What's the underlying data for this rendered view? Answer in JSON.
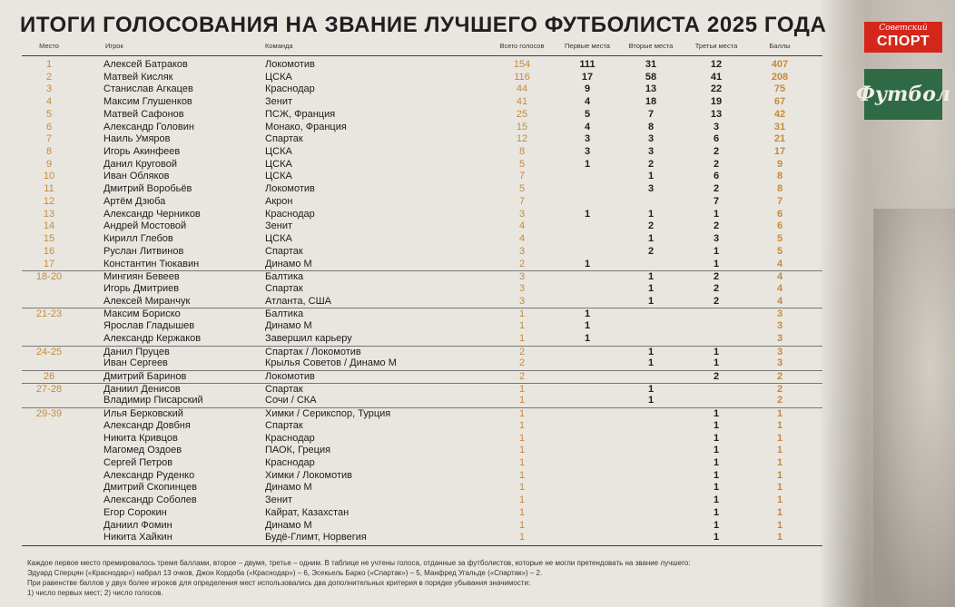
{
  "title": "ИТОГИ ГОЛОСОВАНИЯ НА ЗВАНИЕ ЛУЧШЕГО ФУТБОЛИСТА 2025 ГОДА",
  "logos": {
    "ss_small": "Советский",
    "ss_big": "СПОРТ",
    "fb": "Футбол"
  },
  "headers": {
    "place": "Место",
    "player": "Игрок",
    "team": "Команда",
    "total": "Всего голосов",
    "first": "Первые места",
    "second": "Вторые места",
    "third": "Третьи места",
    "points": "Баллы"
  },
  "rows": [
    {
      "place": "1",
      "name": "Алексей Батраков",
      "team": "Локомотив",
      "tot": "154",
      "f1": "111",
      "f2": "31",
      "f3": "12",
      "pts": "407"
    },
    {
      "place": "2",
      "name": "Матвей Кисляк",
      "team": "ЦСКА",
      "tot": "116",
      "f1": "17",
      "f2": "58",
      "f3": "41",
      "pts": "208"
    },
    {
      "place": "3",
      "name": "Станислав Агкацев",
      "team": "Краснодар",
      "tot": "44",
      "f1": "9",
      "f2": "13",
      "f3": "22",
      "pts": "75"
    },
    {
      "place": "4",
      "name": "Максим Глушенков",
      "team": "Зенит",
      "tot": "41",
      "f1": "4",
      "f2": "18",
      "f3": "19",
      "pts": "67"
    },
    {
      "place": "5",
      "name": "Матвей Сафонов",
      "team": "ПСЖ, Франция",
      "tot": "25",
      "f1": "5",
      "f2": "7",
      "f3": "13",
      "pts": "42"
    },
    {
      "place": "6",
      "name": "Александр Головин",
      "team": "Монако, Франция",
      "tot": "15",
      "f1": "4",
      "f2": "8",
      "f3": "3",
      "pts": "31"
    },
    {
      "place": "7",
      "name": "Наиль Умяров",
      "team": "Спартак",
      "tot": "12",
      "f1": "3",
      "f2": "3",
      "f3": "6",
      "pts": "21"
    },
    {
      "place": "8",
      "name": "Игорь Акинфеев",
      "team": "ЦСКА",
      "tot": "8",
      "f1": "3",
      "f2": "3",
      "f3": "2",
      "pts": "17"
    },
    {
      "place": "9",
      "name": "Данил Круговой",
      "team": "ЦСКА",
      "tot": "5",
      "f1": "1",
      "f2": "2",
      "f3": "2",
      "pts": "9"
    },
    {
      "place": "10",
      "name": "Иван Обляков",
      "team": "ЦСКА",
      "tot": "7",
      "f1": "",
      "f2": "1",
      "f3": "6",
      "pts": "8"
    },
    {
      "place": "11",
      "name": "Дмитрий Воробьёв",
      "team": "Локомотив",
      "tot": "5",
      "f1": "",
      "f2": "3",
      "f3": "2",
      "pts": "8"
    },
    {
      "place": "12",
      "name": "Артём Дзюба",
      "team": "Акрон",
      "tot": "7",
      "f1": "",
      "f2": "",
      "f3": "7",
      "pts": "7"
    },
    {
      "place": "13",
      "name": "Александр Черников",
      "team": "Краснодар",
      "tot": "3",
      "f1": "1",
      "f2": "1",
      "f3": "1",
      "pts": "6"
    },
    {
      "place": "14",
      "name": "Андрей Мостовой",
      "team": "Зенит",
      "tot": "4",
      "f1": "",
      "f2": "2",
      "f3": "2",
      "pts": "6"
    },
    {
      "place": "15",
      "name": "Кирилл Глебов",
      "team": "ЦСКА",
      "tot": "4",
      "f1": "",
      "f2": "1",
      "f3": "3",
      "pts": "5"
    },
    {
      "place": "16",
      "name": "Руслан Литвинов",
      "team": "Спартак",
      "tot": "3",
      "f1": "",
      "f2": "2",
      "f3": "1",
      "pts": "5"
    },
    {
      "place": "17",
      "name": "Константин Тюкавин",
      "team": "Динамо М",
      "tot": "2",
      "f1": "1",
      "f2": "",
      "f3": "1",
      "pts": "4"
    },
    {
      "place": "18-20",
      "name": "Мингиян Бевеев",
      "team": "Балтика",
      "tot": "3",
      "f1": "",
      "f2": "1",
      "f3": "2",
      "pts": "4",
      "sep": true
    },
    {
      "place": "",
      "name": "Игорь Дмитриев",
      "team": "Спартак",
      "tot": "3",
      "f1": "",
      "f2": "1",
      "f3": "2",
      "pts": "4"
    },
    {
      "place": "",
      "name": "Алексей Миранчук",
      "team": "Атланта, США",
      "tot": "3",
      "f1": "",
      "f2": "1",
      "f3": "2",
      "pts": "4"
    },
    {
      "place": "21-23",
      "name": "Максим Бориско",
      "team": "Балтика",
      "tot": "1",
      "f1": "1",
      "f2": "",
      "f3": "",
      "pts": "3",
      "sep": true
    },
    {
      "place": "",
      "name": "Ярослав Гладышев",
      "team": "Динамо М",
      "tot": "1",
      "f1": "1",
      "f2": "",
      "f3": "",
      "pts": "3"
    },
    {
      "place": "",
      "name": "Александр Кержаков",
      "team": "Завершил карьеру",
      "tot": "1",
      "f1": "1",
      "f2": "",
      "f3": "",
      "pts": "3"
    },
    {
      "place": "24-25",
      "name": "Данил Пруцев",
      "team": "Спартак / Локомотив",
      "tot": "2",
      "f1": "",
      "f2": "1",
      "f3": "1",
      "pts": "3",
      "sep": true
    },
    {
      "place": "",
      "name": "Иван Сергеев",
      "team": "Крылья Советов / Динамо М",
      "tot": "2",
      "f1": "",
      "f2": "1",
      "f3": "1",
      "pts": "3"
    },
    {
      "place": "26",
      "name": "Дмитрий Баринов",
      "team": "Локомотив",
      "tot": "2",
      "f1": "",
      "f2": "",
      "f3": "2",
      "pts": "2",
      "sep": true
    },
    {
      "place": "27-28",
      "name": "Даниил Денисов",
      "team": "Спартак",
      "tot": "1",
      "f1": "",
      "f2": "1",
      "f3": "",
      "pts": "2",
      "sep": true
    },
    {
      "place": "",
      "name": "Владимир Писарский",
      "team": "Сочи / СКА",
      "tot": "1",
      "f1": "",
      "f2": "1",
      "f3": "",
      "pts": "2"
    },
    {
      "place": "29-39",
      "name": "Илья Берковский",
      "team": "Химки / Серикспор, Турция",
      "tot": "1",
      "f1": "",
      "f2": "",
      "f3": "1",
      "pts": "1",
      "sep": true
    },
    {
      "place": "",
      "name": "Александр Довбня",
      "team": "Спартак",
      "tot": "1",
      "f1": "",
      "f2": "",
      "f3": "1",
      "pts": "1"
    },
    {
      "place": "",
      "name": "Никита Кривцов",
      "team": "Краснодар",
      "tot": "1",
      "f1": "",
      "f2": "",
      "f3": "1",
      "pts": "1"
    },
    {
      "place": "",
      "name": "Магомед Оздоев",
      "team": "ПАОК, Греция",
      "tot": "1",
      "f1": "",
      "f2": "",
      "f3": "1",
      "pts": "1"
    },
    {
      "place": "",
      "name": "Сергей Петров",
      "team": "Краснодар",
      "tot": "1",
      "f1": "",
      "f2": "",
      "f3": "1",
      "pts": "1"
    },
    {
      "place": "",
      "name": "Александр Руденко",
      "team": "Химки / Локомотив",
      "tot": "1",
      "f1": "",
      "f2": "",
      "f3": "1",
      "pts": "1"
    },
    {
      "place": "",
      "name": "Дмитрий Скопинцев",
      "team": "Динамо М",
      "tot": "1",
      "f1": "",
      "f2": "",
      "f3": "1",
      "pts": "1"
    },
    {
      "place": "",
      "name": "Александр Соболев",
      "team": "Зенит",
      "tot": "1",
      "f1": "",
      "f2": "",
      "f3": "1",
      "pts": "1"
    },
    {
      "place": "",
      "name": "Егор Сорокин",
      "team": "Кайрат, Казахстан",
      "tot": "1",
      "f1": "",
      "f2": "",
      "f3": "1",
      "pts": "1"
    },
    {
      "place": "",
      "name": "Даниил Фомин",
      "team": "Динамо М",
      "tot": "1",
      "f1": "",
      "f2": "",
      "f3": "1",
      "pts": "1"
    },
    {
      "place": "",
      "name": "Никита Хайкин",
      "team": "Будё-Глимт, Норвегия",
      "tot": "1",
      "f1": "",
      "f2": "",
      "f3": "1",
      "pts": "1"
    }
  ],
  "footnotes": [
    "Каждое первое место премировалось тремя баллами, второе – двумя, третье – одним. В таблице не учтены голоса, отданные за футболистов, которые не могли претендовать на звание лучшего:",
    "Эдуард Сперцян («Краснодар») набрал 13 очков, Джон Кордоба («Краснодар») – 6, Эсекьель Барко («Спартак») – 5, Манфред Угальде («Спартак») – 2.",
    "При равенстве баллов у двух более игроков для определения мест использовались два дополнительных критерия в порядке убывания значимости:",
    "1) число первых мест;          2) число голосов."
  ]
}
